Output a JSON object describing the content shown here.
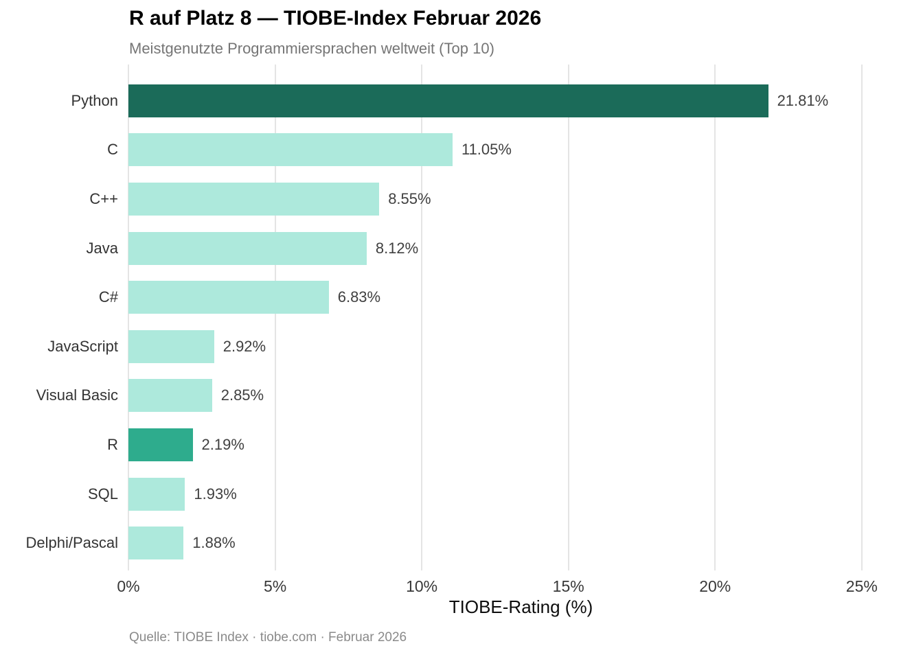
{
  "chart_data": {
    "type": "bar",
    "orientation": "horizontal",
    "title": "R auf Platz 8 — TIOBE-Index Februar 2026",
    "subtitle": "Meistgenutzte Programmiersprachen weltweit (Top 10)",
    "xlabel": "TIOBE-Rating (%)",
    "caption": "Quelle: TIOBE Index · tiobe.com · Februar 2026",
    "categories": [
      "Python",
      "C",
      "C++",
      "Java",
      "C#",
      "JavaScript",
      "Visual Basic",
      "R",
      "SQL",
      "Delphi/Pascal"
    ],
    "values": [
      21.81,
      11.05,
      8.55,
      8.12,
      6.83,
      2.92,
      2.85,
      2.19,
      1.93,
      1.88
    ],
    "value_labels": [
      "21.81%",
      "11.05%",
      "8.55%",
      "8.12%",
      "6.83%",
      "2.92%",
      "2.85%",
      "2.19%",
      "1.93%",
      "1.88%"
    ],
    "bar_colors": [
      "#1b6b59",
      "#ade9dc",
      "#ade9dc",
      "#ade9dc",
      "#ade9dc",
      "#ade9dc",
      "#ade9dc",
      "#2eac8d",
      "#ade9dc",
      "#ade9dc"
    ],
    "x_ticks": {
      "values": [
        0,
        5,
        10,
        15,
        20,
        25
      ],
      "labels": [
        "0%",
        "5%",
        "10%",
        "15%",
        "20%",
        "25%"
      ]
    },
    "xlim": [
      0,
      26.76
    ],
    "grid": "vertical-major-only",
    "legend": "none",
    "colors": {
      "bar_top_python": "#1b6b59",
      "bar_highlight_r": "#2eac8d",
      "bar_default": "#ade9dc",
      "gridline": "#e4e4e4",
      "title": "#000000",
      "subtitle": "#757575",
      "axis_text": "#383838",
      "value_label": "#404040",
      "caption": "#8a8a8a"
    }
  }
}
